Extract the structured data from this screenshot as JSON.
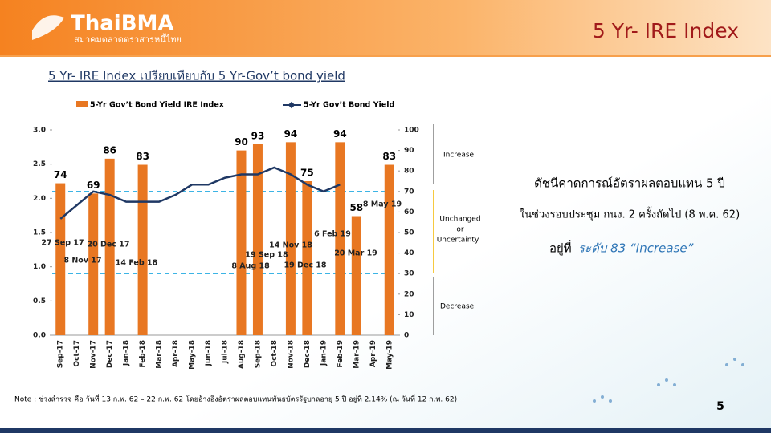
{
  "header": {
    "logo": "ThaiBMA",
    "logo_subtitle": "สมาคมตลาดตราสารหนี้ไทย",
    "title": "5 Yr- IRE Index"
  },
  "chart_data": {
    "type": "bar-line",
    "title": "5 Yr- IRE Index เปรียบเทียบกับ 5 Yr-Gov’t bond yield",
    "categories": [
      "Sep-17",
      "Oct-17",
      "Nov-17",
      "Dec-17",
      "Jan-18",
      "Feb-18",
      "Mar-18",
      "Apr-18",
      "May-18",
      "Jun-18",
      "Jul-18",
      "Aug-18",
      "Sep-18",
      "Oct-18",
      "Nov-18",
      "Dec-18",
      "Jan-19",
      "Feb-19",
      "Mar-19",
      "Apr-19",
      "May-19"
    ],
    "series": [
      {
        "name": "5-Yr Gov’t Bond Yield IRE Index",
        "color": "#e87722",
        "axis": "y2",
        "values": [
          74,
          null,
          69,
          86,
          null,
          83,
          null,
          null,
          null,
          null,
          null,
          90,
          93,
          null,
          94,
          75,
          null,
          94,
          58,
          null,
          83
        ]
      },
      {
        "name": "5-Yr Gov’t Bond Yield",
        "color": "#1f3864",
        "axis": "y",
        "values": [
          1.7,
          1.9,
          2.1,
          2.05,
          1.95,
          1.95,
          1.95,
          2.05,
          2.2,
          2.2,
          2.3,
          2.35,
          2.35,
          2.45,
          2.35,
          2.2,
          2.1,
          2.2,
          null,
          null,
          null
        ]
      }
    ],
    "ylim": [
      0,
      3.0
    ],
    "yticks": [
      {
        "value": 0,
        "label": "0.0"
      },
      0.5,
      {
        "value": 1,
        "label": "1.0"
      },
      1.5,
      {
        "value": 2,
        "label": "2.0"
      },
      2.5,
      {
        "value": 3,
        "label": "3.0"
      }
    ],
    "y2lim": [
      0,
      100
    ],
    "y2ticks": [
      0,
      10,
      20,
      30,
      40,
      50,
      60,
      70,
      80,
      90,
      100
    ],
    "thresholds": [
      70,
      30
    ],
    "annotations": [
      "27 Sep 17",
      "8 Nov 17",
      "20 Dec 17",
      "14 Feb 18",
      "8 Aug 18",
      "19 Sep 18",
      "14 Nov 18",
      "19 Dec 18",
      "6 Feb 19",
      "20 Mar 19",
      "8 May 19"
    ],
    "zones": [
      "Increase",
      "Unchanged",
      "or",
      "Uncertainty",
      "Decrease"
    ]
  },
  "summary": {
    "line1": "ดัชนีคาดการณ์อัตราผลตอบแทน 5 ปี",
    "line2": "ในช่วงรอบประชุม กนง. 2 ครั้งถัดไป (8 พ.ค. 62)",
    "line3a": "อยู่ที่",
    "line3b": "ระดับ 83 “Increase”"
  },
  "note": "Note : ช่วงสำรวจ คือ วันที่ 13 ก.พ. 62 – 22 ก.พ. 62 โดยอ้างอิงอัตราผลตอบแทนพันธบัตรรัฐบาลอายุ 5 ปี อยู่ที่ 2.14% (ณ วันที่ 12 ก.พ. 62)",
  "page_number": "5"
}
